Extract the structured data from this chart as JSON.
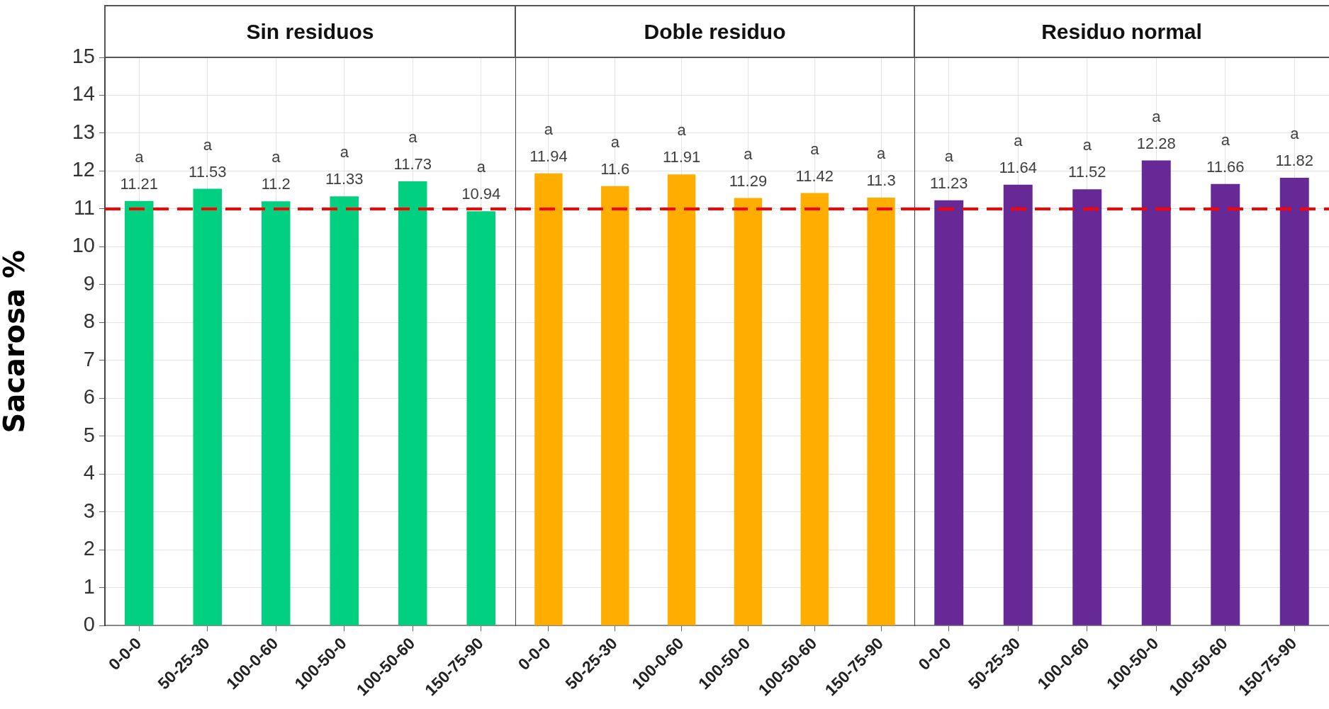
{
  "chart_data": [
    {
      "type": "bar",
      "title": "Sin residuos",
      "ylabel": "Sacarosa %",
      "categories": [
        "0-0-0",
        "50-25-30",
        "100-0-60",
        "100-50-0",
        "100-50-60",
        "150-75-90"
      ],
      "values": [
        11.21,
        11.53,
        11.2,
        11.33,
        11.73,
        10.94
      ],
      "color": "#00d07f",
      "ylim": [
        0,
        15
      ],
      "yticks": [
        0,
        1,
        2,
        3,
        4,
        5,
        6,
        7,
        8,
        9,
        10,
        11,
        12,
        13,
        14,
        15
      ],
      "grid": true,
      "data_labels": true,
      "ref_lines": [
        {
          "axis": "y",
          "value": 11,
          "color": "#ff0000",
          "line_style": "dashed"
        }
      ],
      "annotations": [
        {
          "text": "a",
          "x": "0-0-0",
          "y": 11.21
        },
        {
          "text": "a",
          "x": "50-25-30",
          "y": 11.53
        },
        {
          "text": "a",
          "x": "100-0-60",
          "y": 11.2
        },
        {
          "text": "a",
          "x": "100-50-0",
          "y": 11.33
        },
        {
          "text": "a",
          "x": "100-50-60",
          "y": 11.73
        },
        {
          "text": "a",
          "x": "150-75-90",
          "y": 10.94
        }
      ]
    },
    {
      "type": "bar",
      "title": "Doble residuo",
      "categories": [
        "0-0-0",
        "50-25-30",
        "100-0-60",
        "100-50-0",
        "100-50-60",
        "150-75-90"
      ],
      "values": [
        11.94,
        11.6,
        11.91,
        11.29,
        11.42,
        11.3
      ],
      "color": "#ffae00",
      "ylim": [
        0,
        15
      ],
      "yticks": [
        0,
        1,
        2,
        3,
        4,
        5,
        6,
        7,
        8,
        9,
        10,
        11,
        12,
        13,
        14,
        15
      ],
      "tick_labels": "x",
      "grid": true,
      "data_labels": true,
      "ref_lines": [
        {
          "axis": "y",
          "value": 11,
          "color": "#ff0000",
          "line_style": "dashed"
        }
      ],
      "annotations": [
        {
          "text": "a",
          "x": "0-0-0",
          "y": 11.94
        },
        {
          "text": "a",
          "x": "50-25-30",
          "y": 11.6
        },
        {
          "text": "a",
          "x": "100-0-60",
          "y": 11.91
        },
        {
          "text": "a",
          "x": "100-50-0",
          "y": 11.29
        },
        {
          "text": "a",
          "x": "100-50-60",
          "y": 11.42
        },
        {
          "text": "a",
          "x": "150-75-90",
          "y": 11.3
        }
      ]
    },
    {
      "type": "bar",
      "title": "Residuo normal",
      "categories": [
        "0-0-0",
        "50-25-30",
        "100-0-60",
        "100-50-0",
        "100-50-60",
        "150-75-90"
      ],
      "values": [
        11.23,
        11.64,
        11.52,
        12.28,
        11.66,
        11.82
      ],
      "color": "#662996",
      "ylim": [
        0,
        15
      ],
      "yticks": [
        0,
        1,
        2,
        3,
        4,
        5,
        6,
        7,
        8,
        9,
        10,
        11,
        12,
        13,
        14,
        15
      ],
      "tick_labels": "x",
      "grid": true,
      "data_labels": true,
      "ref_lines": [
        {
          "axis": "y",
          "value": 11,
          "color": "#ff0000",
          "line_style": "dashed"
        }
      ],
      "annotations": [
        {
          "text": "a",
          "x": "0-0-0",
          "y": 11.23
        },
        {
          "text": "a",
          "x": "50-25-30",
          "y": 11.64
        },
        {
          "text": "a",
          "x": "100-0-60",
          "y": 11.52
        },
        {
          "text": "a",
          "x": "100-50-0",
          "y": 12.28
        },
        {
          "text": "a",
          "x": "100-50-60",
          "y": 11.66
        },
        {
          "text": "a",
          "x": "150-75-90",
          "y": 11.82
        }
      ]
    }
  ]
}
